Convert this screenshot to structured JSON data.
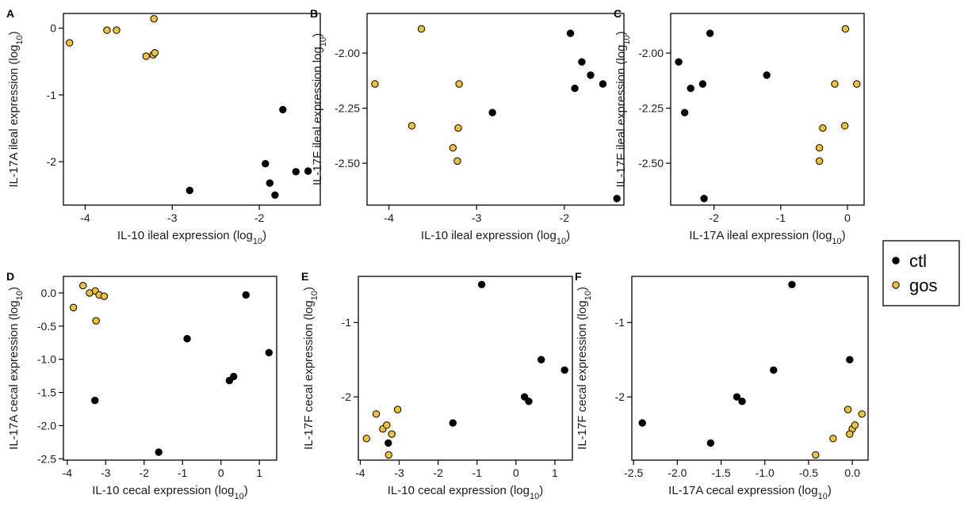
{
  "legend": {
    "entries": [
      {
        "key": "ctl",
        "label": "ctl",
        "color": "#000000"
      },
      {
        "key": "gos",
        "label": "gos",
        "color": "#f2c12e"
      }
    ]
  },
  "chart_data": [
    {
      "type": "scatter",
      "label": "A",
      "xlabel": {
        "main": "IL-10 ileal expression (log",
        "sub": "10",
        "end": ")"
      },
      "ylabel": {
        "main": "IL-17A ileal expression (log",
        "sub": "10",
        "end": ")"
      },
      "xlim": [
        -4.25,
        -1.3
      ],
      "ylim": [
        -2.65,
        0.22
      ],
      "xticks": [
        -4,
        -3,
        -2
      ],
      "yticks": [
        -2,
        -1,
        0
      ],
      "series": [
        {
          "group": "ctl",
          "x": [
            -1.73,
            -1.93,
            -1.88,
            -1.82,
            -1.58,
            -1.44,
            -2.8
          ],
          "y": [
            -1.22,
            -2.03,
            -2.32,
            -2.5,
            -2.15,
            -2.14,
            -2.43
          ]
        },
        {
          "group": "gos",
          "x": [
            -4.18,
            -3.75,
            -3.64,
            -3.21,
            -3.3,
            -3.22,
            -3.2
          ],
          "y": [
            -0.22,
            -0.03,
            -0.03,
            0.14,
            -0.42,
            -0.4,
            -0.37
          ]
        }
      ]
    },
    {
      "type": "scatter",
      "label": "B",
      "xlabel": {
        "main": "IL-10 ileal expression (log",
        "sub": "10",
        "end": ")"
      },
      "ylabel": {
        "main": "IL-17F ileal expression log",
        "sub": "10",
        "end": ")"
      },
      "xlim": [
        -4.25,
        -1.32
      ],
      "ylim": [
        -2.69,
        -1.82
      ],
      "xticks": [
        -4,
        -3,
        -2
      ],
      "yticks": [
        -2.0,
        -2.25,
        -2.5
      ],
      "ytick_decimals": 2,
      "series": [
        {
          "group": "ctl",
          "x": [
            -1.93,
            -1.8,
            -1.7,
            -1.88,
            -1.56,
            -1.4,
            -2.82
          ],
          "y": [
            -1.91,
            -2.04,
            -2.1,
            -2.16,
            -2.14,
            -2.66,
            -2.27
          ]
        },
        {
          "group": "gos",
          "x": [
            -4.16,
            -3.63,
            -3.74,
            -3.2,
            -3.21,
            -3.27,
            -3.22
          ],
          "y": [
            -2.14,
            -1.89,
            -2.33,
            -2.14,
            -2.34,
            -2.43,
            -2.49
          ]
        }
      ]
    },
    {
      "type": "scatter",
      "label": "C",
      "xlabel": {
        "main": "IL-17A ileal expression (log",
        "sub": "10",
        "end": ")"
      },
      "ylabel": {
        "main": "IL-17F ileal expression (log",
        "sub": "10",
        "end": ")"
      },
      "xlim": [
        -2.65,
        0.25
      ],
      "ylim": [
        -2.69,
        -1.82
      ],
      "xticks": [
        -2,
        -1,
        0
      ],
      "yticks": [
        -2.0,
        -2.25,
        -2.5
      ],
      "ytick_decimals": 2,
      "series": [
        {
          "group": "ctl",
          "x": [
            -2.06,
            -2.53,
            -2.35,
            -2.17,
            -2.44,
            -1.21,
            -2.15
          ],
          "y": [
            -1.91,
            -2.04,
            -2.16,
            -2.14,
            -2.27,
            -2.1,
            -2.66
          ]
        },
        {
          "group": "gos",
          "x": [
            -0.03,
            -0.19,
            0.14,
            -0.37,
            -0.04,
            -0.42,
            -0.42
          ],
          "y": [
            -1.89,
            -2.14,
            -2.14,
            -2.34,
            -2.33,
            -2.43,
            -2.49
          ]
        }
      ]
    },
    {
      "type": "scatter",
      "label": "D",
      "xlabel": {
        "main": "IL-10 cecal expression (log",
        "sub": "10",
        "end": ")"
      },
      "ylabel": {
        "main": "IL-17A cecal expression (log",
        "sub": "10",
        "end": ")"
      },
      "xlim": [
        -4.1,
        1.45
      ],
      "ylim": [
        -2.52,
        0.25
      ],
      "xticks": [
        -4,
        -3,
        -2,
        -1,
        0,
        1
      ],
      "yticks": [
        0.0,
        -0.5,
        -1.0,
        -1.5,
        -2.0,
        -2.5
      ],
      "ytick_decimals": 1,
      "series": [
        {
          "group": "ctl",
          "x": [
            0.65,
            -0.88,
            1.25,
            0.22,
            0.33,
            -3.28,
            -1.62
          ],
          "y": [
            -0.03,
            -0.69,
            -0.9,
            -1.32,
            -1.26,
            -1.62,
            -2.4
          ]
        },
        {
          "group": "gos",
          "x": [
            -3.59,
            -3.27,
            -3.42,
            -3.17,
            -3.04,
            -3.84,
            -3.25
          ],
          "y": [
            0.11,
            0.03,
            0.0,
            -0.03,
            -0.05,
            -0.22,
            -0.42
          ]
        }
      ]
    },
    {
      "type": "scatter",
      "label": "E",
      "xlabel": {
        "main": "IL-10 cecal expression (log",
        "sub": "10",
        "end": ")"
      },
      "ylabel": {
        "main": "IL-17F cecal expression (log",
        "sub": "10",
        "end": ")"
      },
      "xlim": [
        -4.05,
        1.45
      ],
      "ylim": [
        -2.85,
        -0.38
      ],
      "xticks": [
        -4,
        -3,
        -2,
        -1,
        0,
        1
      ],
      "yticks": [
        -1,
        -2
      ],
      "series": [
        {
          "group": "ctl",
          "x": [
            -0.88,
            0.65,
            1.25,
            0.22,
            0.33,
            -1.62,
            -3.28
          ],
          "y": [
            -0.49,
            -1.5,
            -1.64,
            -2.0,
            -2.06,
            -2.35,
            -2.62
          ]
        },
        {
          "group": "gos",
          "x": [
            -3.04,
            -3.59,
            -3.42,
            -3.32,
            -3.19,
            -3.84,
            -3.27
          ],
          "y": [
            -2.17,
            -2.23,
            -2.43,
            -2.38,
            -2.5,
            -2.56,
            -2.78
          ]
        }
      ]
    },
    {
      "type": "scatter",
      "label": "F",
      "xlabel": {
        "main": "IL-17A cecal expression (log",
        "sub": "10",
        "end": ")"
      },
      "ylabel": {
        "main": "IL-17F cecal expression (log",
        "sub": "10",
        "end": ")"
      },
      "xlim": [
        -2.52,
        0.18
      ],
      "ylim": [
        -2.85,
        -0.38
      ],
      "xticks": [
        -2.5,
        -2.0,
        -1.5,
        -1.0,
        -0.5,
        0.0
      ],
      "xtick_decimals": 1,
      "yticks": [
        -1,
        -2
      ],
      "series": [
        {
          "group": "ctl",
          "x": [
            -0.69,
            -0.03,
            -0.9,
            -1.32,
            -1.26,
            -2.4,
            -1.62
          ],
          "y": [
            -0.49,
            -1.5,
            -1.64,
            -2.0,
            -2.06,
            -2.35,
            -2.62
          ]
        },
        {
          "group": "gos",
          "x": [
            -0.05,
            0.11,
            0.0,
            0.03,
            -0.03,
            -0.22,
            -0.42
          ],
          "y": [
            -2.17,
            -2.23,
            -2.43,
            -2.38,
            -2.5,
            -2.56,
            -2.78
          ]
        }
      ]
    }
  ]
}
